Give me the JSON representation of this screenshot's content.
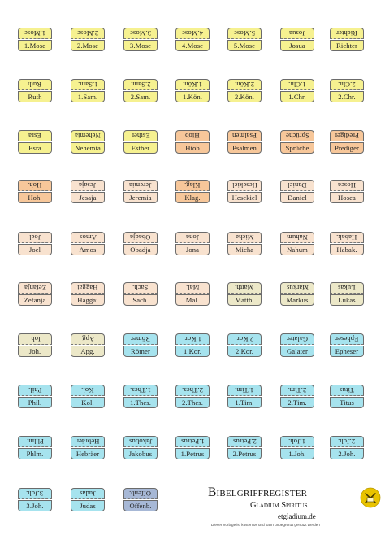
{
  "brand": {
    "title": "Bibelgriffregister",
    "subtitle": "Gladium Spiritus",
    "url": "etgladium.de",
    "note": "Dieser Vorlage ist kostenlos und kann unbegrenzt genutzt werden",
    "logo_icon": "gladium-spiritus-logo-icon",
    "logo_color": "#e9c300"
  },
  "colors": {
    "yellow": "#f6f190",
    "orange": "#f7c79a",
    "peach": "#f8e2cf",
    "beige": "#ece8c8",
    "cyan": "#a6e3ee",
    "blue": "#a7b8d6"
  },
  "tabs": [
    {
      "top": "1.Mose",
      "bot": "1.Mose",
      "color": "yellow"
    },
    {
      "top": "2.Mose",
      "bot": "2.Mose",
      "color": "yellow"
    },
    {
      "top": "3.Mose",
      "bot": "3.Mose",
      "color": "yellow"
    },
    {
      "top": "4.Mose",
      "bot": "4.Mose",
      "color": "yellow"
    },
    {
      "top": "5.Mose",
      "bot": "5.Mose",
      "color": "yellow"
    },
    {
      "top": "Josua",
      "bot": "Josua",
      "color": "yellow"
    },
    {
      "top": "Richter",
      "bot": "Richter",
      "color": "yellow"
    },
    {
      "top": "Ruth",
      "bot": "Ruth",
      "color": "yellow"
    },
    {
      "top": "1.Sam.",
      "bot": "1.Sam.",
      "color": "yellow"
    },
    {
      "top": "2.Sam.",
      "bot": "2.Sam.",
      "color": "yellow"
    },
    {
      "top": "1.Kön.",
      "bot": "1.Kön.",
      "color": "yellow"
    },
    {
      "top": "2.Kön.",
      "bot": "2.Kön.",
      "color": "yellow"
    },
    {
      "top": "1.Chr.",
      "bot": "1.Chr.",
      "color": "yellow"
    },
    {
      "top": "2.Chr.",
      "bot": "2.Chr.",
      "color": "yellow"
    },
    {
      "top": "Esra",
      "bot": "Esra",
      "color": "yellow"
    },
    {
      "top": "Nehemia",
      "bot": "Nehemia",
      "color": "yellow"
    },
    {
      "top": "Esther",
      "bot": "Esther",
      "color": "yellow"
    },
    {
      "top": "Hiob",
      "bot": "Hiob",
      "color": "orange"
    },
    {
      "top": "Psalmen",
      "bot": "Psalmen",
      "color": "orange"
    },
    {
      "top": "Sprüche",
      "bot": "Sprüche",
      "color": "orange"
    },
    {
      "top": "Prediger",
      "bot": "Prediger",
      "color": "orange"
    },
    {
      "top": "Hoh.",
      "bot": "Hoh.",
      "color": "orange"
    },
    {
      "top": "Jesaja",
      "bot": "Jesaja",
      "color": "peach"
    },
    {
      "top": "Jeremia",
      "bot": "Jeremia",
      "color": "peach"
    },
    {
      "top": "Klag.",
      "bot": "Klag.",
      "color": "orange"
    },
    {
      "top": "Hesekiel",
      "bot": "Hesekiel",
      "color": "peach"
    },
    {
      "top": "Daniel",
      "bot": "Daniel",
      "color": "peach"
    },
    {
      "top": "Hosea",
      "bot": "Hosea",
      "color": "peach"
    },
    {
      "top": "Joel",
      "bot": "Joel",
      "color": "peach"
    },
    {
      "top": "Amos",
      "bot": "Amos",
      "color": "peach"
    },
    {
      "top": "Obadja",
      "bot": "Obadja",
      "color": "peach"
    },
    {
      "top": "Jona",
      "bot": "Jona",
      "color": "peach"
    },
    {
      "top": "Micha",
      "bot": "Micha",
      "color": "peach"
    },
    {
      "top": "Nahum",
      "bot": "Nahum",
      "color": "peach"
    },
    {
      "top": "Habak.",
      "bot": "Habak.",
      "color": "peach"
    },
    {
      "top": "Zefanja",
      "bot": "Zefanja",
      "color": "peach"
    },
    {
      "top": "Haggai",
      "bot": "Haggai",
      "color": "peach"
    },
    {
      "top": "Sach.",
      "bot": "Sach.",
      "color": "peach"
    },
    {
      "top": "Mal.",
      "bot": "Mal.",
      "color": "peach"
    },
    {
      "top": "Matth.",
      "bot": "Matth.",
      "color": "beige"
    },
    {
      "top": "Markus",
      "bot": "Markus",
      "color": "beige"
    },
    {
      "top": "Lukas",
      "bot": "Lukas",
      "color": "beige"
    },
    {
      "top": "Joh.",
      "bot": "Joh.",
      "color": "beige"
    },
    {
      "top": "Apg.",
      "bot": "Apg.",
      "color": "beige"
    },
    {
      "top": "Römer",
      "bot": "Römer",
      "color": "cyan"
    },
    {
      "top": "1.Kor.",
      "bot": "1.Kor.",
      "color": "cyan"
    },
    {
      "top": "2.Kor.",
      "bot": "2.Kor.",
      "color": "cyan"
    },
    {
      "top": "Galater",
      "bot": "Galater",
      "color": "cyan"
    },
    {
      "top": "Epheser",
      "bot": "Epheser",
      "color": "cyan"
    },
    {
      "top": "Phil.",
      "bot": "Phil.",
      "color": "cyan"
    },
    {
      "top": "Kol.",
      "bot": "Kol.",
      "color": "cyan"
    },
    {
      "top": "1.Thes.",
      "bot": "1.Thes.",
      "color": "cyan"
    },
    {
      "top": "2.Thes.",
      "bot": "2.Thes.",
      "color": "cyan"
    },
    {
      "top": "1.Tim.",
      "bot": "1.Tim.",
      "color": "cyan"
    },
    {
      "top": "2.Tim.",
      "bot": "2.Tim.",
      "color": "cyan"
    },
    {
      "top": "Titus",
      "bot": "Titus",
      "color": "cyan"
    },
    {
      "top": "Phlm.",
      "bot": "Phlm.",
      "color": "cyan"
    },
    {
      "top": "Hebräer",
      "bot": "Hebräer",
      "color": "cyan"
    },
    {
      "top": "Jakobus",
      "bot": "Jakobus",
      "color": "cyan"
    },
    {
      "top": "1.Petrus",
      "bot": "1.Petrus",
      "color": "cyan"
    },
    {
      "top": "2.Petrus",
      "bot": "2.Petrus",
      "color": "cyan"
    },
    {
      "top": "1.Joh.",
      "bot": "1.Joh.",
      "color": "cyan"
    },
    {
      "top": "2.Joh.",
      "bot": "2.Joh.",
      "color": "cyan"
    },
    {
      "top": "3.Joh.",
      "bot": "3.Joh.",
      "color": "cyan"
    },
    {
      "top": "Judas",
      "bot": "Judas",
      "color": "cyan"
    },
    {
      "top": "Offenb.",
      "bot": "Offenb.",
      "color": "blue"
    }
  ]
}
